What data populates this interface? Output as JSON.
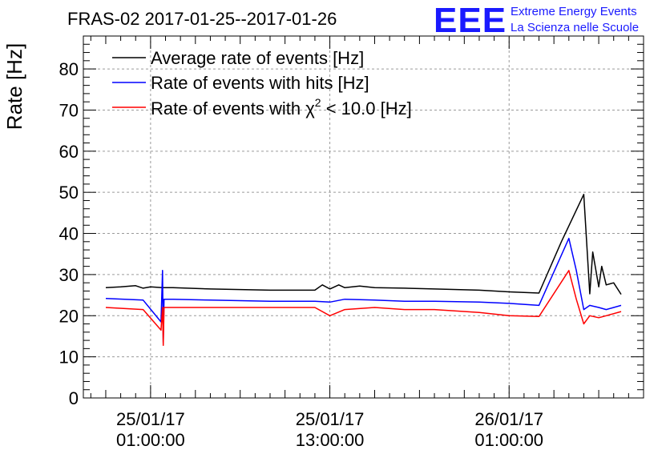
{
  "chart_data": {
    "type": "line",
    "title": "FRAS-02 2017-01-25--2017-01-26",
    "ylabel": "Rate [Hz]",
    "xlabel": "",
    "ylim": [
      0,
      88
    ],
    "yticks": [
      0,
      10,
      20,
      30,
      40,
      50,
      60,
      70,
      80
    ],
    "x_unit": "hours since 2017-01-25 00:00:00",
    "xlim": [
      -3.5,
      34.0
    ],
    "xticks": [
      {
        "x": 1.0,
        "date": "25/01/17",
        "time": "01:00:00"
      },
      {
        "x": 13.0,
        "date": "25/01/17",
        "time": "13:00:00"
      },
      {
        "x": 25.0,
        "date": "26/01/17",
        "time": "01:00:00"
      }
    ],
    "grid": true,
    "legend": {
      "placement": "top-left",
      "entries": [
        {
          "label": "Average rate of events [Hz]",
          "color": "#000000"
        },
        {
          "label": "Rate of events with hits [Hz]",
          "color": "#0000ff"
        },
        {
          "label_prefix": "Rate of events with ",
          "label_symbol": "χ",
          "label_sup": "2",
          "label_suffix": " < 10.0 [Hz]",
          "color": "#ff0000"
        }
      ]
    },
    "series": [
      {
        "name": "Average rate of events [Hz]",
        "color": "#000000",
        "x": [
          -2.0,
          -1.0,
          0.0,
          0.5,
          1.0,
          1.8,
          1.85,
          2.5,
          5.0,
          9.0,
          12.0,
          12.5,
          13.0,
          13.6,
          14.0,
          15.0,
          16.0,
          18.0,
          20.0,
          23.0,
          25.0,
          27.0,
          28.5,
          30.0,
          30.4,
          30.6,
          31.0,
          31.2,
          31.5,
          32.0,
          32.5
        ],
        "y": [
          26.8,
          27.0,
          27.3,
          26.7,
          27.0,
          26.8,
          26.8,
          26.8,
          26.5,
          26.2,
          26.2,
          27.5,
          26.5,
          27.5,
          26.8,
          27.2,
          26.8,
          26.7,
          26.5,
          26.2,
          25.8,
          25.5,
          38.0,
          49.5,
          25.3,
          35.5,
          27.0,
          32.0,
          27.5,
          28.0,
          25.2
        ]
      },
      {
        "name": "Rate of events with hits [Hz]",
        "color": "#0000ff",
        "x": [
          -2.0,
          0.5,
          1.7,
          1.8,
          1.85,
          1.9,
          2.5,
          5.0,
          9.0,
          12.0,
          13.0,
          14.0,
          16.0,
          18.0,
          20.0,
          23.0,
          25.0,
          27.0,
          29.0,
          29.5,
          30.0,
          30.4,
          31.0,
          31.5,
          32.5
        ],
        "y": [
          24.2,
          23.8,
          18.5,
          31.0,
          13.5,
          24.0,
          24.0,
          23.8,
          23.5,
          23.5,
          23.3,
          24.0,
          23.8,
          23.5,
          23.5,
          23.3,
          23.0,
          22.5,
          38.8,
          31.0,
          21.5,
          22.5,
          22.0,
          21.5,
          22.5
        ]
      },
      {
        "name": "Rate of events with χ2 < 10.0 [Hz]",
        "color": "#ff0000",
        "x": [
          -2.0,
          0.5,
          1.7,
          1.8,
          1.85,
          1.9,
          2.5,
          5.0,
          9.0,
          12.0,
          13.0,
          14.0,
          16.0,
          18.0,
          20.0,
          23.0,
          25.0,
          27.0,
          29.0,
          29.5,
          30.0,
          30.4,
          31.0,
          31.5,
          32.5
        ],
        "y": [
          22.0,
          21.5,
          16.5,
          22.0,
          12.8,
          22.0,
          22.0,
          22.0,
          22.0,
          22.0,
          20.0,
          21.5,
          22.0,
          21.5,
          21.5,
          20.8,
          20.0,
          19.8,
          31.0,
          24.0,
          18.0,
          20.0,
          19.5,
          20.0,
          21.0
        ]
      }
    ]
  },
  "logo": {
    "mark": "EEE",
    "line1": "Extreme Energy Events",
    "line2": "La Scienza nelle Scuole"
  }
}
